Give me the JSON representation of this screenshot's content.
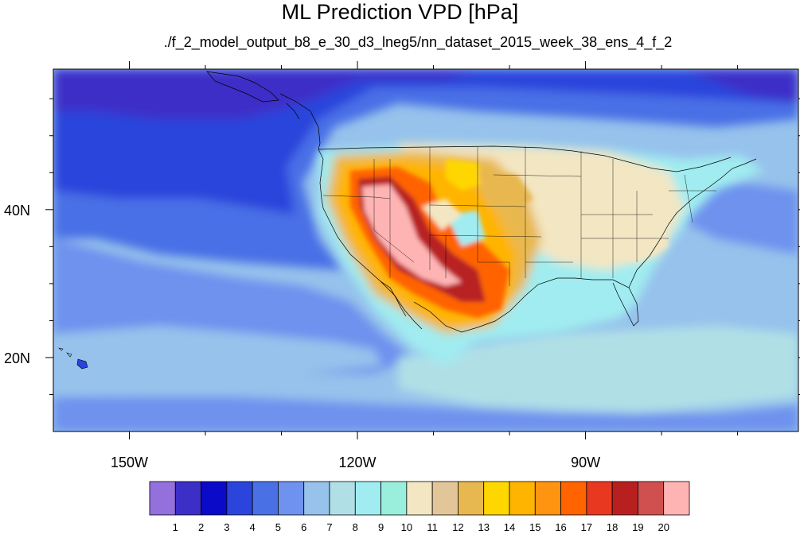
{
  "title": "ML Prediction VPD [hPa]",
  "subtitle": "./f_2_model_output_b8_e_30_d3_lneg5/nn_dataset_2015_week_38_ens_4_f_2",
  "map": {
    "lon_range": [
      -160,
      -62
    ],
    "lat_range": [
      10,
      59
    ],
    "lon_ticks": [
      {
        "value": -150,
        "label": "150W"
      },
      {
        "value": -120,
        "label": "120W"
      },
      {
        "value": -90,
        "label": "90W"
      }
    ],
    "lat_ticks": [
      {
        "value": 40,
        "label": "40N"
      },
      {
        "value": 20,
        "label": "20N"
      }
    ]
  },
  "colorbar": {
    "labels": [
      "1",
      "2",
      "3",
      "4",
      "5",
      "6",
      "7",
      "8",
      "9",
      "10",
      "11",
      "12",
      "13",
      "14",
      "15",
      "16",
      "17",
      "18",
      "19",
      "20"
    ],
    "colors": [
      "#9370db",
      "#3c2fc8",
      "#0a0ac8",
      "#2a44dc",
      "#4a70e6",
      "#6e92ee",
      "#96c2ec",
      "#b0e0e6",
      "#a0ecf0",
      "#9aeedc",
      "#f3e6c2",
      "#e2c69a",
      "#e8b850",
      "#ffd700",
      "#ffb400",
      "#ff9410",
      "#ff6400",
      "#e83820",
      "#b82020",
      "#d05050",
      "#ffb4b4"
    ]
  }
}
